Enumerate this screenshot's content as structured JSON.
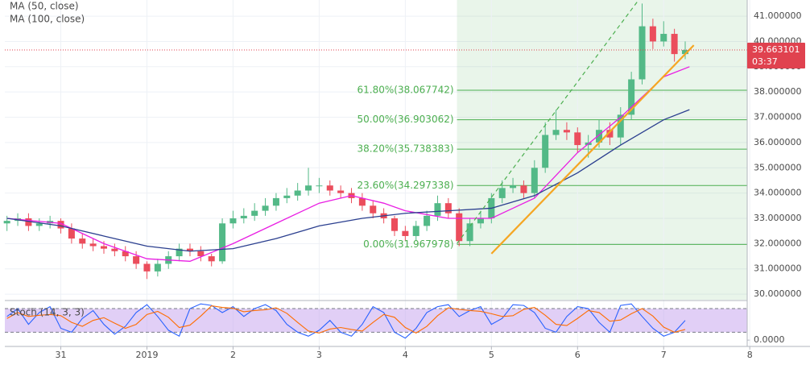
{
  "chart_data": [
    {
      "type": "candlestick",
      "xlim": [
        -0.65,
        7.97
      ],
      "ylim": [
        29.78,
        41.64
      ],
      "yticks": [
        {
          "value": 30,
          "label": "30.000000"
        },
        {
          "value": 31,
          "label": "31.000000"
        },
        {
          "value": 32,
          "label": "32.000000"
        },
        {
          "value": 33,
          "label": "33.000000"
        },
        {
          "value": 34,
          "label": "34.000000"
        },
        {
          "value": 35,
          "label": "35.000000"
        },
        {
          "value": 36,
          "label": "36.000000"
        },
        {
          "value": 37,
          "label": "37.000000"
        },
        {
          "value": 38,
          "label": "38.000000"
        },
        {
          "value": 39,
          "label": "39.000000"
        },
        {
          "value": 40,
          "label": "40.000000"
        },
        {
          "value": 41,
          "label": "41.000000"
        }
      ],
      "grid": true,
      "up_color": "#53b987",
      "down_color": "#eb4d5c",
      "x": [
        -0.625,
        -0.5,
        -0.375,
        -0.25,
        -0.125,
        0,
        0.125,
        0.25,
        0.375,
        0.5,
        0.625,
        0.75,
        0.875,
        1,
        1.125,
        1.25,
        1.375,
        1.5,
        1.625,
        1.75,
        1.875,
        2,
        2.125,
        2.25,
        2.375,
        2.5,
        2.625,
        2.75,
        2.875,
        3,
        3.125,
        3.25,
        3.375,
        3.5,
        3.625,
        3.75,
        3.875,
        4,
        4.125,
        4.25,
        4.375,
        4.5,
        4.625,
        4.75,
        4.875,
        5,
        5.125,
        5.25,
        5.375,
        5.5,
        5.625,
        5.75,
        5.875,
        6,
        6.125,
        6.25,
        6.375,
        6.5,
        6.625,
        6.75,
        6.875,
        7,
        7.125,
        7.25
      ],
      "open": [
        32.8,
        32.9,
        33.0,
        32.7,
        32.8,
        32.9,
        32.6,
        32.2,
        32.0,
        31.9,
        31.8,
        31.7,
        31.5,
        31.2,
        30.9,
        31.2,
        31.5,
        31.8,
        31.7,
        31.5,
        31.3,
        32.8,
        33.0,
        33.1,
        33.3,
        33.5,
        33.8,
        33.9,
        34.1,
        34.3,
        34.3,
        34.1,
        34.0,
        33.8,
        33.5,
        33.2,
        33.0,
        32.5,
        32.3,
        32.7,
        33.1,
        33.6,
        33.2,
        32.1,
        32.8,
        33.0,
        33.8,
        34.2,
        34.3,
        34.0,
        35.0,
        36.3,
        36.5,
        36.4,
        35.9,
        36.0,
        36.5,
        36.2,
        37.1,
        38.5,
        40.6,
        40.0,
        40.3,
        39.5
      ],
      "high": [
        33.1,
        33.2,
        33.2,
        33.0,
        33.1,
        33.0,
        32.8,
        32.4,
        32.2,
        32.1,
        32.0,
        31.9,
        31.7,
        31.3,
        31.4,
        31.7,
        32.0,
        32.0,
        31.9,
        31.6,
        33.0,
        33.3,
        33.4,
        33.6,
        33.8,
        34.0,
        34.2,
        34.4,
        35.0,
        34.6,
        34.5,
        34.3,
        34.2,
        34.0,
        33.7,
        33.4,
        33.1,
        32.7,
        32.9,
        33.3,
        33.9,
        33.8,
        33.4,
        33.0,
        33.3,
        34.0,
        34.5,
        34.6,
        34.5,
        35.3,
        36.8,
        37.3,
        36.8,
        36.6,
        36.3,
        36.9,
        36.8,
        37.4,
        38.8,
        41.5,
        40.9,
        40.8,
        40.5,
        40.0
      ],
      "low": [
        32.5,
        32.7,
        32.5,
        32.5,
        32.6,
        32.4,
        32.0,
        31.8,
        31.7,
        31.6,
        31.5,
        31.3,
        31.0,
        30.6,
        30.7,
        31.0,
        31.3,
        31.5,
        31.3,
        31.1,
        31.2,
        32.6,
        32.8,
        32.9,
        33.1,
        33.3,
        33.6,
        33.7,
        33.9,
        34.0,
        33.9,
        33.8,
        33.6,
        33.3,
        33.0,
        32.8,
        32.3,
        32.1,
        32.1,
        32.5,
        32.9,
        33.0,
        31.9,
        31.9,
        32.6,
        32.8,
        33.6,
        34.0,
        33.8,
        33.8,
        34.8,
        36.1,
        36.1,
        35.6,
        35.4,
        35.8,
        35.9,
        35.9,
        36.9,
        38.3,
        39.7,
        39.8,
        39.2,
        39.3
      ],
      "close": [
        32.9,
        33.0,
        32.7,
        32.8,
        32.9,
        32.6,
        32.2,
        32.0,
        31.9,
        31.8,
        31.7,
        31.5,
        31.2,
        30.9,
        31.2,
        31.5,
        31.8,
        31.7,
        31.5,
        31.3,
        32.8,
        33.0,
        33.1,
        33.3,
        33.5,
        33.8,
        33.9,
        34.1,
        34.3,
        34.3,
        34.1,
        34.0,
        33.8,
        33.5,
        33.2,
        33.0,
        32.5,
        32.3,
        32.7,
        33.1,
        33.6,
        33.2,
        32.1,
        32.8,
        33.0,
        33.8,
        34.2,
        34.3,
        34.0,
        35.0,
        36.3,
        36.5,
        36.4,
        35.9,
        36.0,
        36.5,
        36.2,
        37.1,
        38.5,
        40.6,
        40.0,
        40.3,
        39.5,
        39.66
      ],
      "series": [
        {
          "name": "MA (50, close)",
          "color": "#e91ee3",
          "x": [
            -0.625,
            0,
            0.5,
            1,
            1.5,
            2,
            2.5,
            3,
            3.375,
            3.75,
            4,
            4.5,
            5,
            5.5,
            6,
            6.5,
            7,
            7.3
          ],
          "values": [
            33.0,
            32.8,
            32.0,
            31.4,
            31.3,
            32.0,
            32.8,
            33.6,
            33.9,
            33.6,
            33.3,
            33.0,
            33.0,
            33.8,
            35.6,
            37.0,
            38.6,
            39.0
          ]
        },
        {
          "name": "MA (100, close)",
          "color": "#2b3f8f",
          "x": [
            -0.625,
            0,
            0.5,
            1,
            1.5,
            2,
            2.5,
            3,
            3.5,
            4,
            4.5,
            5,
            5.5,
            6,
            6.5,
            7,
            7.3
          ],
          "values": [
            33.0,
            32.7,
            32.3,
            31.9,
            31.7,
            31.8,
            32.2,
            32.7,
            33.0,
            33.2,
            33.3,
            33.4,
            33.9,
            34.8,
            35.9,
            36.9,
            37.3
          ]
        }
      ],
      "fib_color": "#4caf50",
      "fib_start_x": 4.6,
      "fib_levels": [
        {
          "value": 38.067742,
          "label": "61.80%(38.067742)"
        },
        {
          "value": 36.903062,
          "label": "50.00%(36.903062)"
        },
        {
          "value": 35.738383,
          "label": "38.20%(35.738383)"
        },
        {
          "value": 34.297338,
          "label": "23.60%(34.297338)"
        },
        {
          "value": 31.967978,
          "label": "0.00%(31.967978)"
        }
      ],
      "trendlines": [
        {
          "color": "#4caf50",
          "dashed": true,
          "x": [
            4.6,
            6.7
          ],
          "y": [
            32.0,
            41.6
          ]
        },
        {
          "color": "#f5a623",
          "dashed": false,
          "x": [
            5.0,
            7.35
          ],
          "y": [
            31.6,
            39.85
          ]
        }
      ],
      "last_price": 39.663101,
      "last_price_color": "#e0424f",
      "countdown": "03:37"
    },
    {
      "type": "line",
      "title": "Stoch (14, 3, 3)",
      "xlim": [
        -0.65,
        7.97
      ],
      "ylim": [
        -12,
        94.4
      ],
      "yticks": [
        {
          "value": 0,
          "label": "0.0000"
        }
      ],
      "bands": [
        80,
        20
      ],
      "band_color": "#c9a7ef",
      "xticks": [
        {
          "value": 0,
          "label": "31"
        },
        {
          "value": 1,
          "label": "2019"
        },
        2,
        3,
        4,
        5,
        6,
        7,
        8
      ],
      "series": [
        {
          "color": "#2962ff",
          "x": [
            -0.625,
            -0.5,
            -0.375,
            -0.25,
            -0.125,
            0,
            0.125,
            0.25,
            0.375,
            0.5,
            0.625,
            0.75,
            0.875,
            1,
            1.125,
            1.25,
            1.375,
            1.5,
            1.625,
            1.75,
            1.875,
            2,
            2.125,
            2.25,
            2.375,
            2.5,
            2.625,
            2.75,
            2.875,
            3,
            3.125,
            3.25,
            3.375,
            3.5,
            3.625,
            3.75,
            3.875,
            4,
            4.125,
            4.25,
            4.375,
            4.5,
            4.625,
            4.75,
            4.875,
            5,
            5.125,
            5.25,
            5.375,
            5.5,
            5.625,
            5.75,
            5.875,
            6,
            6.125,
            6.25,
            6.375,
            6.5,
            6.625,
            6.75,
            6.875,
            7,
            7.125,
            7.25
          ],
          "values": [
            60,
            80,
            40,
            70,
            85,
            30,
            20,
            55,
            75,
            40,
            15,
            35,
            70,
            90,
            60,
            25,
            10,
            80,
            92,
            88,
            70,
            85,
            60,
            80,
            90,
            75,
            40,
            20,
            10,
            25,
            50,
            20,
            10,
            40,
            85,
            70,
            20,
            5,
            30,
            70,
            85,
            90,
            60,
            75,
            85,
            40,
            55,
            90,
            88,
            70,
            30,
            20,
            60,
            85,
            80,
            45,
            20,
            88,
            92,
            60,
            30,
            10,
            20,
            50
          ]
        },
        {
          "color": "#ff6d00",
          "x": [
            -0.625,
            -0.5,
            -0.375,
            -0.25,
            -0.125,
            0,
            0.125,
            0.25,
            0.375,
            0.5,
            0.625,
            0.75,
            0.875,
            1,
            1.125,
            1.25,
            1.375,
            1.5,
            1.625,
            1.75,
            1.875,
            2,
            2.125,
            2.25,
            2.375,
            2.5,
            2.625,
            2.75,
            2.875,
            3,
            3.125,
            3.25,
            3.375,
            3.5,
            3.625,
            3.75,
            3.875,
            4,
            4.125,
            4.25,
            4.375,
            4.5,
            4.625,
            4.75,
            4.875,
            5,
            5.125,
            5.25,
            5.375,
            5.5,
            5.625,
            5.75,
            5.875,
            6,
            6.125,
            6.25,
            6.375,
            6.5,
            6.625,
            6.75,
            6.875,
            7,
            7.125,
            7.25
          ],
          "values": [
            55,
            70,
            60,
            63,
            65,
            62,
            45,
            35,
            50,
            57,
            43,
            30,
            40,
            65,
            73,
            58,
            32,
            38,
            61,
            87,
            83,
            81,
            72,
            75,
            77,
            82,
            68,
            45,
            23,
            18,
            28,
            32,
            27,
            23,
            45,
            65,
            58,
            32,
            18,
            35,
            62,
            82,
            78,
            75,
            73,
            67,
            60,
            62,
            78,
            83,
            63,
            40,
            37,
            55,
            75,
            70,
            48,
            51,
            67,
            80,
            61,
            33,
            20,
            27
          ]
        }
      ]
    }
  ]
}
